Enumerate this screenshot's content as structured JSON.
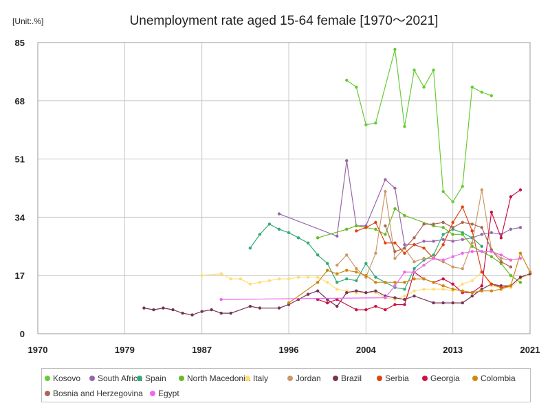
{
  "chart_data": {
    "type": "line",
    "title": "Unemployment rate aged 15-64 female [1970～2021]",
    "unit_label": "[Unit:.%]",
    "xlim": [
      1970,
      2021
    ],
    "ylim": [
      0,
      85
    ],
    "x_ticks": [
      1970,
      1979,
      1987,
      1996,
      2004,
      2013,
      2021
    ],
    "y_ticks": [
      0,
      17,
      34,
      51,
      68,
      85
    ],
    "grid": true,
    "legend_position": "bottom",
    "series": [
      {
        "name": "Kosovo",
        "color": "#66cc33",
        "points": [
          [
            2002,
            74
          ],
          [
            2003,
            72
          ],
          [
            2004,
            61
          ],
          [
            2005,
            61.5
          ],
          [
            2007,
            83
          ],
          [
            2008,
            60.5
          ],
          [
            2009,
            77
          ],
          [
            2010,
            72
          ],
          [
            2011,
            77
          ],
          [
            2012,
            41.5
          ],
          [
            2013,
            38.5
          ],
          [
            2014,
            43
          ],
          [
            2015,
            72
          ],
          [
            2016,
            70.5
          ],
          [
            2017,
            69.5
          ]
        ]
      },
      {
        "name": "South Africa",
        "color": "#9966aa",
        "points": [
          [
            1995,
            35
          ],
          [
            2001,
            28.5
          ],
          [
            2002,
            50.5
          ],
          [
            2003,
            31.5
          ],
          [
            2004,
            31.5
          ],
          [
            2006,
            45
          ],
          [
            2007,
            42.5
          ],
          [
            2008,
            26
          ],
          [
            2009,
            26
          ],
          [
            2010,
            27
          ],
          [
            2011,
            27
          ],
          [
            2012,
            27.5
          ],
          [
            2013,
            27
          ],
          [
            2014,
            27.5
          ],
          [
            2015,
            28
          ],
          [
            2016,
            29
          ],
          [
            2017,
            29.5
          ],
          [
            2018,
            29
          ],
          [
            2019,
            30.5
          ],
          [
            2020,
            31
          ]
        ]
      },
      {
        "name": "Spain",
        "color": "#33aa77",
        "points": [
          [
            1992,
            25
          ],
          [
            1993,
            29
          ],
          [
            1994,
            32
          ],
          [
            1995,
            30.5
          ],
          [
            1996,
            29.5
          ],
          [
            1997,
            28
          ],
          [
            1998,
            26.5
          ],
          [
            1999,
            23
          ],
          [
            2000,
            20.5
          ],
          [
            2001,
            15
          ],
          [
            2002,
            16
          ],
          [
            2003,
            15.5
          ],
          [
            2004,
            20.5
          ],
          [
            2005,
            16.5
          ],
          [
            2006,
            15
          ],
          [
            2007,
            13.5
          ],
          [
            2008,
            13
          ],
          [
            2009,
            19
          ],
          [
            2010,
            21.5
          ],
          [
            2011,
            23
          ],
          [
            2012,
            29
          ],
          [
            2013,
            30.5
          ],
          [
            2014,
            29.5
          ],
          [
            2015,
            28
          ],
          [
            2016,
            25.5
          ]
        ]
      },
      {
        "name": "North Macedonia",
        "color": "#66bb22",
        "points": [
          [
            1999,
            28
          ],
          [
            2002,
            30.5
          ],
          [
            2003,
            31.5
          ],
          [
            2004,
            31
          ],
          [
            2005,
            30.5
          ],
          [
            2006,
            29
          ],
          [
            2007,
            36.5
          ],
          [
            2008,
            34.5
          ],
          [
            2011,
            31.5
          ],
          [
            2012,
            31
          ],
          [
            2013,
            29
          ],
          [
            2014,
            29
          ],
          [
            2015,
            25.5
          ],
          [
            2017,
            22.5
          ],
          [
            2018,
            20.5
          ],
          [
            2019,
            17
          ],
          [
            2020,
            15
          ]
        ]
      },
      {
        "name": "Italy",
        "color": "#ffdd77",
        "points": [
          [
            1987,
            17
          ],
          [
            1989,
            17.5
          ],
          [
            1990,
            16
          ],
          [
            1991,
            16
          ],
          [
            1992,
            14.5
          ],
          [
            1993,
            15
          ],
          [
            1994,
            15.5
          ],
          [
            1995,
            16
          ],
          [
            1996,
            16
          ],
          [
            1997,
            16.5
          ],
          [
            1998,
            16.5
          ],
          [
            1999,
            16.5
          ],
          [
            2000,
            15
          ],
          [
            2001,
            13
          ],
          [
            2002,
            12.5
          ],
          [
            2003,
            12
          ],
          [
            2004,
            12
          ],
          [
            2005,
            12
          ],
          [
            2006,
            10.5
          ],
          [
            2007,
            10
          ],
          [
            2008,
            11
          ],
          [
            2009,
            12.5
          ],
          [
            2010,
            13
          ],
          [
            2011,
            13
          ],
          [
            2012,
            13
          ],
          [
            2013,
            12.5
          ],
          [
            2014,
            14.5
          ],
          [
            2015,
            15.5
          ],
          [
            2016,
            18
          ],
          [
            2017,
            14
          ],
          [
            2018,
            13.5
          ],
          [
            2019,
            13.5
          ],
          [
            2020,
            16
          ],
          [
            2021,
            17.5
          ]
        ]
      },
      {
        "name": "Jordan",
        "color": "#cc9966",
        "points": [
          [
            2001,
            20
          ],
          [
            2002,
            23
          ],
          [
            2003,
            19
          ],
          [
            2004,
            16.5
          ],
          [
            2005,
            23.5
          ],
          [
            2006,
            41.5
          ],
          [
            2007,
            22
          ],
          [
            2008,
            25
          ],
          [
            2009,
            21
          ],
          [
            2010,
            22
          ],
          [
            2011,
            22
          ],
          [
            2012,
            21
          ],
          [
            2013,
            19.5
          ],
          [
            2014,
            19
          ],
          [
            2015,
            26.5
          ],
          [
            2016,
            42
          ],
          [
            2017,
            24.5
          ],
          [
            2018,
            22
          ],
          [
            2019,
            21.5
          ]
        ]
      },
      {
        "name": "Brazil",
        "color": "#773355",
        "points": [
          [
            1981,
            7.5
          ],
          [
            1982,
            7
          ],
          [
            1983,
            7.5
          ],
          [
            1984,
            7
          ],
          [
            1985,
            6
          ],
          [
            1986,
            5.5
          ],
          [
            1987,
            6.5
          ],
          [
            1988,
            7
          ],
          [
            1989,
            6
          ],
          [
            1990,
            6
          ],
          [
            1992,
            8
          ],
          [
            1993,
            7.5
          ],
          [
            1995,
            7.5
          ],
          [
            1996,
            8.5
          ],
          [
            1997,
            10
          ],
          [
            1998,
            11.5
          ],
          [
            1999,
            12.5
          ],
          [
            2000,
            10
          ],
          [
            2001,
            8
          ],
          [
            2002,
            12
          ],
          [
            2003,
            12.5
          ],
          [
            2004,
            12
          ],
          [
            2005,
            12.5
          ],
          [
            2006,
            11
          ],
          [
            2007,
            10.5
          ],
          [
            2008,
            10
          ],
          [
            2009,
            11
          ],
          [
            2011,
            9
          ],
          [
            2012,
            9
          ],
          [
            2013,
            9
          ],
          [
            2014,
            9
          ],
          [
            2015,
            11
          ],
          [
            2016,
            13
          ],
          [
            2017,
            14.5
          ],
          [
            2018,
            14
          ],
          [
            2019,
            14
          ],
          [
            2020,
            16.5
          ],
          [
            2021,
            17.5
          ]
        ]
      },
      {
        "name": "Serbia",
        "color": "#dd4411",
        "points": [
          [
            2003,
            30
          ],
          [
            2004,
            31
          ],
          [
            2005,
            32.5
          ],
          [
            2006,
            26.5
          ],
          [
            2007,
            26.5
          ],
          [
            2008,
            23.5
          ],
          [
            2009,
            26
          ],
          [
            2010,
            25
          ],
          [
            2011,
            22
          ],
          [
            2012,
            26
          ],
          [
            2013,
            32.5
          ],
          [
            2014,
            37
          ],
          [
            2015,
            30
          ],
          [
            2016,
            18
          ],
          [
            2017,
            14.5
          ],
          [
            2018,
            13.5
          ],
          [
            2019,
            14
          ]
        ]
      },
      {
        "name": "Georgia",
        "color": "#cc1144",
        "points": [
          [
            1999,
            10
          ],
          [
            2000,
            9
          ],
          [
            2001,
            10
          ],
          [
            2003,
            7
          ],
          [
            2004,
            7
          ],
          [
            2005,
            8
          ],
          [
            2006,
            7
          ],
          [
            2007,
            8.5
          ],
          [
            2008,
            8.5
          ],
          [
            2009,
            18
          ],
          [
            2010,
            16
          ],
          [
            2011,
            15
          ],
          [
            2012,
            16
          ],
          [
            2013,
            14.5
          ],
          [
            2014,
            12
          ],
          [
            2015,
            12
          ],
          [
            2016,
            14
          ],
          [
            2017,
            35.5
          ],
          [
            2018,
            28
          ],
          [
            2019,
            40
          ],
          [
            2020,
            42
          ]
        ]
      },
      {
        "name": "Colombia",
        "color": "#cc8811",
        "points": [
          [
            1996,
            9
          ],
          [
            1999,
            15
          ],
          [
            2000,
            18.5
          ],
          [
            2001,
            17.5
          ],
          [
            2002,
            18.5
          ],
          [
            2003,
            18
          ],
          [
            2004,
            17
          ],
          [
            2005,
            15
          ],
          [
            2006,
            15
          ],
          [
            2007,
            15
          ],
          [
            2008,
            15
          ],
          [
            2009,
            16
          ],
          [
            2010,
            16
          ],
          [
            2011,
            15
          ],
          [
            2012,
            14
          ],
          [
            2013,
            13
          ],
          [
            2014,
            12.5
          ],
          [
            2015,
            12
          ],
          [
            2016,
            12.5
          ],
          [
            2017,
            12.5
          ],
          [
            2018,
            13
          ],
          [
            2019,
            14
          ],
          [
            2020,
            23.5
          ],
          [
            2021,
            18
          ]
        ]
      },
      {
        "name": "Bosnia and Herzegovina",
        "color": "#aa6655",
        "points": [
          [
            2006,
            31.5
          ],
          [
            2007,
            24
          ],
          [
            2008,
            25
          ],
          [
            2009,
            28
          ],
          [
            2010,
            32
          ],
          [
            2011,
            32
          ],
          [
            2012,
            32.5
          ],
          [
            2013,
            31
          ],
          [
            2014,
            32.5
          ],
          [
            2015,
            32
          ],
          [
            2016,
            31
          ],
          [
            2017,
            24.5
          ],
          [
            2018,
            21
          ],
          [
            2019,
            19.5
          ]
        ]
      },
      {
        "name": "Egypt",
        "color": "#ee66ee",
        "points": [
          [
            1989,
            10
          ],
          [
            2006,
            10.5
          ],
          [
            2007,
            14
          ],
          [
            2008,
            18
          ],
          [
            2009,
            18
          ],
          [
            2010,
            20
          ],
          [
            2011,
            22
          ],
          [
            2012,
            21.5
          ],
          [
            2013,
            22.5
          ],
          [
            2014,
            23.5
          ],
          [
            2015,
            24
          ],
          [
            2016,
            24
          ],
          [
            2017,
            24
          ],
          [
            2018,
            23
          ],
          [
            2019,
            21.5
          ],
          [
            2020,
            22
          ]
        ]
      }
    ]
  }
}
